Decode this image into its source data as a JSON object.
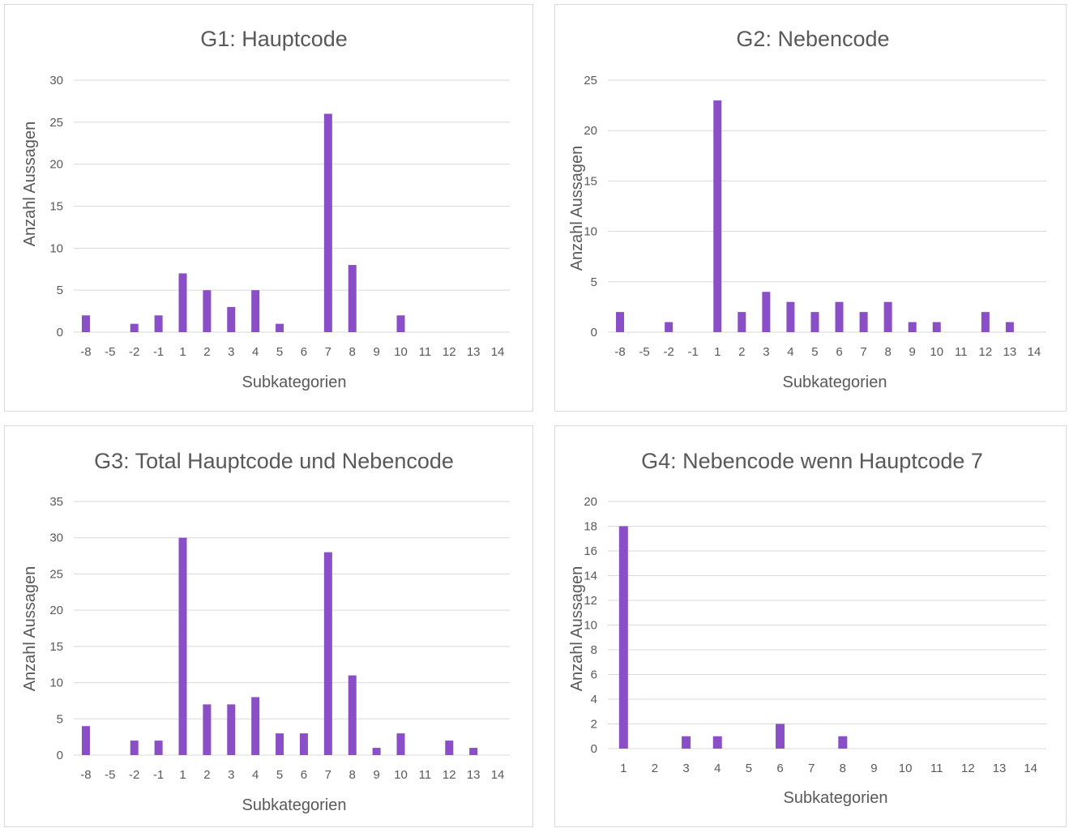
{
  "colors": {
    "bar": "#8A4FC6",
    "grid": "#d9d9d9",
    "text": "#595959"
  },
  "chart_data": [
    {
      "type": "bar",
      "title": "G1: Hauptcode",
      "xlabel": "Subkategorien",
      "ylabel": "Anzahl Aussagen",
      "ylim": [
        0,
        30
      ],
      "yticks": [
        0,
        5,
        10,
        15,
        20,
        25,
        30
      ],
      "grid": true,
      "categories": [
        "-8",
        "-5",
        "-2",
        "-1",
        "1",
        "2",
        "3",
        "4",
        "5",
        "6",
        "7",
        "8",
        "9",
        "10",
        "11",
        "12",
        "13",
        "14"
      ],
      "values": [
        2,
        0,
        1,
        2,
        7,
        5,
        3,
        5,
        1,
        0,
        26,
        8,
        0,
        2,
        0,
        0,
        0,
        0
      ]
    },
    {
      "type": "bar",
      "title": "G2: Nebencode",
      "xlabel": "Subkategorien",
      "ylabel": "Anzahl Aussagen",
      "ylim": [
        0,
        25
      ],
      "yticks": [
        0,
        5,
        10,
        15,
        20,
        25
      ],
      "grid": true,
      "categories": [
        "-8",
        "-5",
        "-2",
        "-1",
        "1",
        "2",
        "3",
        "4",
        "5",
        "6",
        "7",
        "8",
        "9",
        "10",
        "11",
        "12",
        "13",
        "14"
      ],
      "values": [
        2,
        0,
        1,
        0,
        23,
        2,
        4,
        3,
        2,
        3,
        2,
        3,
        1,
        1,
        0,
        2,
        1,
        0
      ]
    },
    {
      "type": "bar",
      "title": "G3: Total Hauptcode und Nebencode",
      "xlabel": "Subkategorien",
      "ylabel": "Anzahl Aussagen",
      "ylim": [
        0,
        35
      ],
      "yticks": [
        0,
        5,
        10,
        15,
        20,
        25,
        30,
        35
      ],
      "grid": true,
      "categories": [
        "-8",
        "-5",
        "-2",
        "-1",
        "1",
        "2",
        "3",
        "4",
        "5",
        "6",
        "7",
        "8",
        "9",
        "10",
        "11",
        "12",
        "13",
        "14"
      ],
      "values": [
        4,
        0,
        2,
        2,
        30,
        7,
        7,
        8,
        3,
        3,
        28,
        11,
        1,
        3,
        0,
        2,
        1,
        0
      ]
    },
    {
      "type": "bar",
      "title": "G4: Nebencode wenn Hauptcode 7",
      "xlabel": "Subkategorien",
      "ylabel": "Anzahl Aussagen",
      "ylim": [
        0,
        20
      ],
      "yticks": [
        0,
        2,
        4,
        6,
        8,
        10,
        12,
        14,
        16,
        18,
        20
      ],
      "grid": true,
      "categories": [
        "1",
        "2",
        "3",
        "4",
        "5",
        "6",
        "7",
        "8",
        "9",
        "10",
        "11",
        "12",
        "13",
        "14"
      ],
      "values": [
        18,
        0,
        1,
        1,
        0,
        2,
        0,
        1,
        0,
        0,
        0,
        0,
        0,
        0
      ]
    }
  ]
}
